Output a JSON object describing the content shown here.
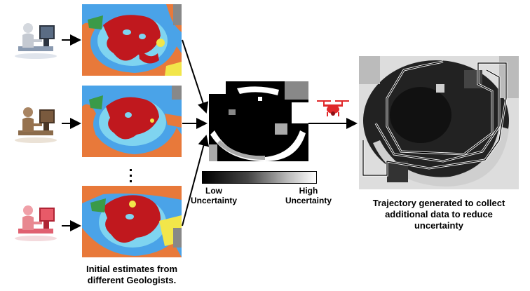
{
  "captions": {
    "left_line1": "Initial estimates from",
    "left_line2": "different Geologists.",
    "right_line1": "Trajectory generated to collect",
    "right_line2": "additional data to reduce",
    "right_line3": "uncertainty"
  },
  "colorbar": {
    "low_line1": "Low",
    "low_line2": "Uncertainty",
    "high_line1": "High",
    "high_line2": "Uncertainty"
  },
  "icons": {
    "geologist_1": "person-at-computer-icon",
    "geologist_2": "person-at-computer-icon",
    "geologist_3": "person-at-computer-icon",
    "drone": "drone-icon"
  },
  "colors": {
    "geologist_1": "#8a9ab0",
    "geologist_2": "#8b6b4a",
    "geologist_3": "#e06070",
    "map_red": "#c0181e",
    "map_orange": "#e8793a",
    "map_lightblue": "#7fd4f0",
    "map_blue": "#4aa3e8",
    "map_green": "#3a9a48",
    "map_yellow": "#f2e64a",
    "drone": "#e0282a"
  }
}
